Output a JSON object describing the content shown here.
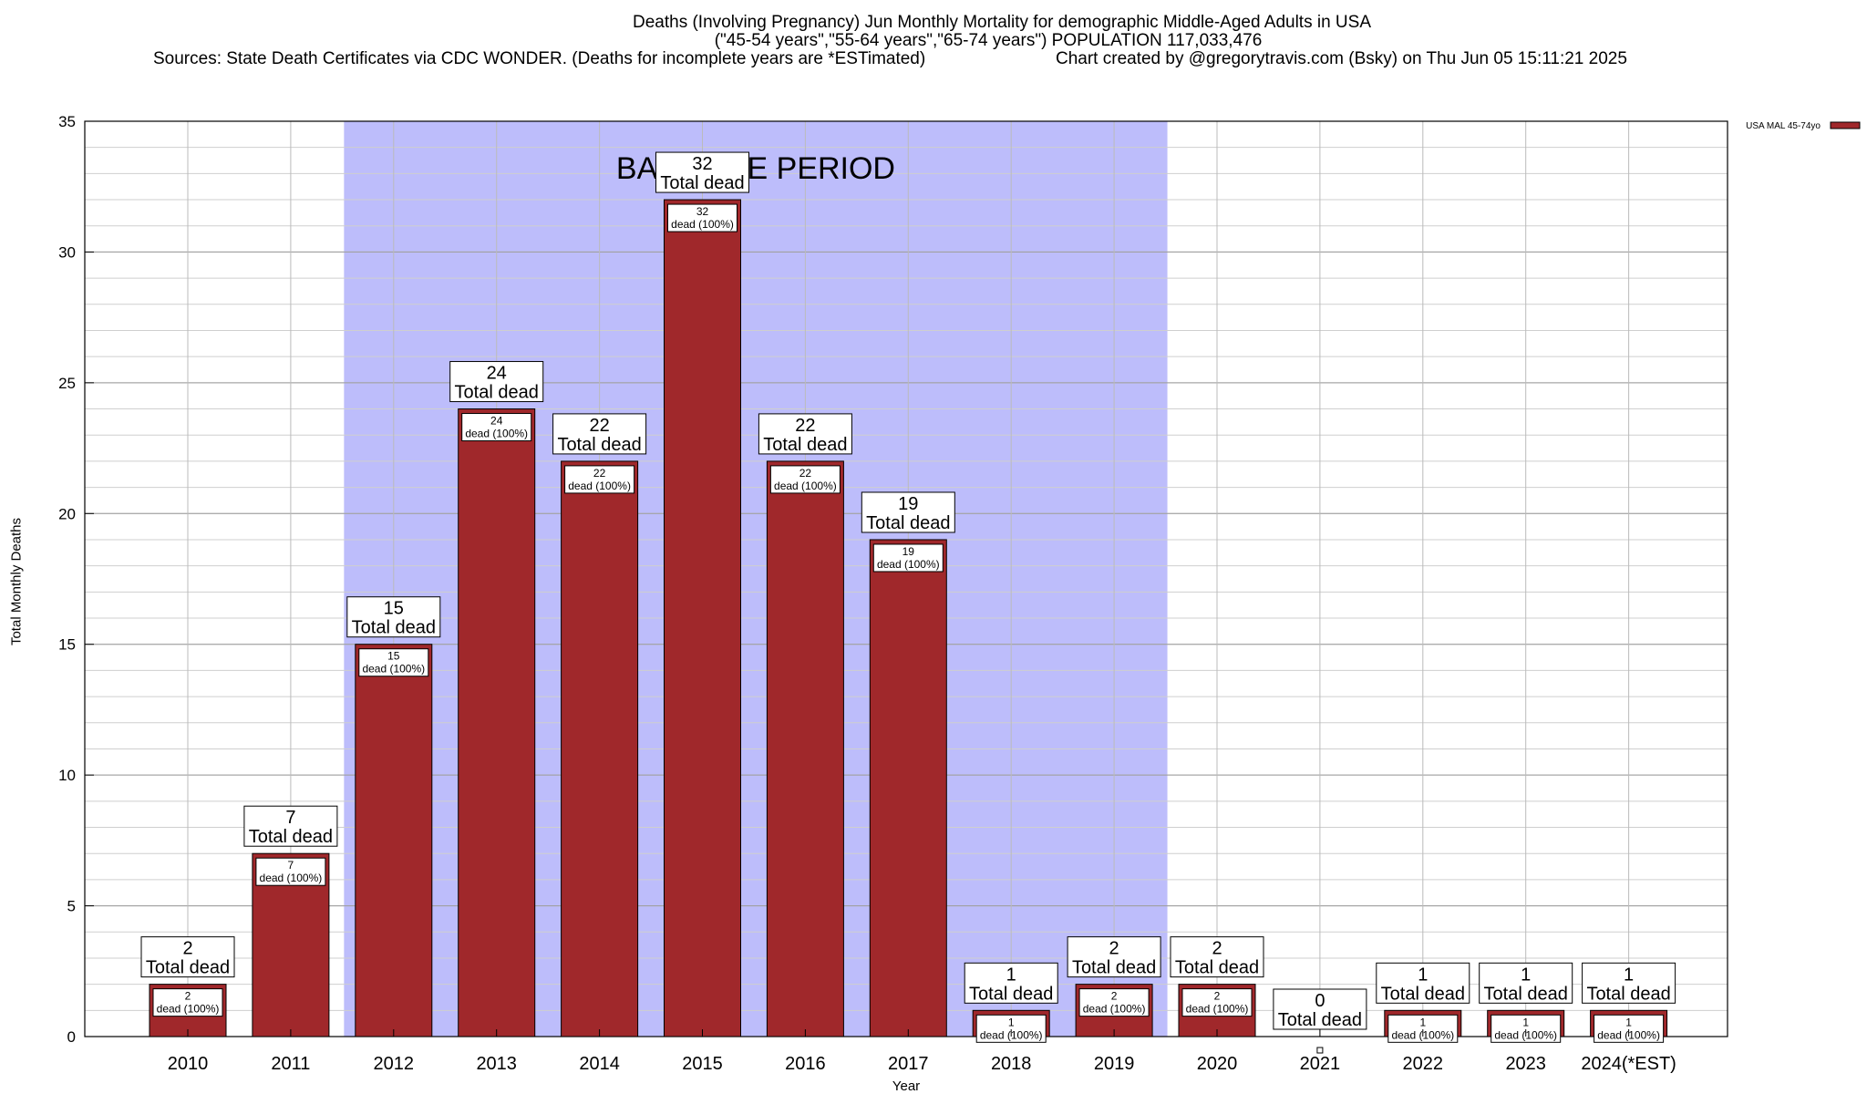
{
  "chart_data": {
    "type": "bar",
    "title": "Deaths (Involving Pregnancy) Jun Monthly Mortality for demographic Middle-Aged Adults in USA",
    "subtitle": "(\"45-54 years\",\"55-64 years\",\"65-74 years\") POPULATION 117,033,476",
    "sources": "Sources: State Death Certificates via CDC WONDER. (Deaths for incomplete years are *ESTimated)",
    "credit": "Chart created by @gregorytravis.com (Bsky) on Thu Jun 05 15:11:21 2025",
    "xlabel": "Year",
    "ylabel": "Total Monthly Deaths",
    "ylim": [
      0,
      35
    ],
    "yticks": [
      0,
      5,
      10,
      15,
      20,
      25,
      30,
      35
    ],
    "minor_grid_step": 1,
    "grid": true,
    "legend_placement": "top-right",
    "categories": [
      "2010",
      "2011",
      "2012",
      "2013",
      "2014",
      "2015",
      "2016",
      "2017",
      "2018",
      "2019",
      "2020",
      "2021",
      "2022",
      "2023",
      "2024(*EST)"
    ],
    "series": [
      {
        "name": "USA MAL 45-74yo",
        "color": "#a0282b",
        "values": [
          2,
          7,
          15,
          24,
          22,
          32,
          22,
          19,
          1,
          2,
          2,
          0,
          1,
          1,
          1
        ],
        "inner_labels": [
          "dead (100%)",
          "dead (100%)",
          "dead (100%)",
          "dead (100%)",
          "dead (100%)",
          "dead (100%)",
          "dead (100%)",
          "dead (100%)",
          "dead (100%)",
          "dead (100%)",
          "dead (100%)",
          "",
          "dead (100%)",
          "dead (100%)",
          "dead (100%)"
        ]
      }
    ],
    "total_label": "Total dead",
    "baseline": {
      "label": "BASELINE PERIOD",
      "from_category": "2012",
      "to_category": "2019",
      "color": "#bdbdfb"
    }
  }
}
